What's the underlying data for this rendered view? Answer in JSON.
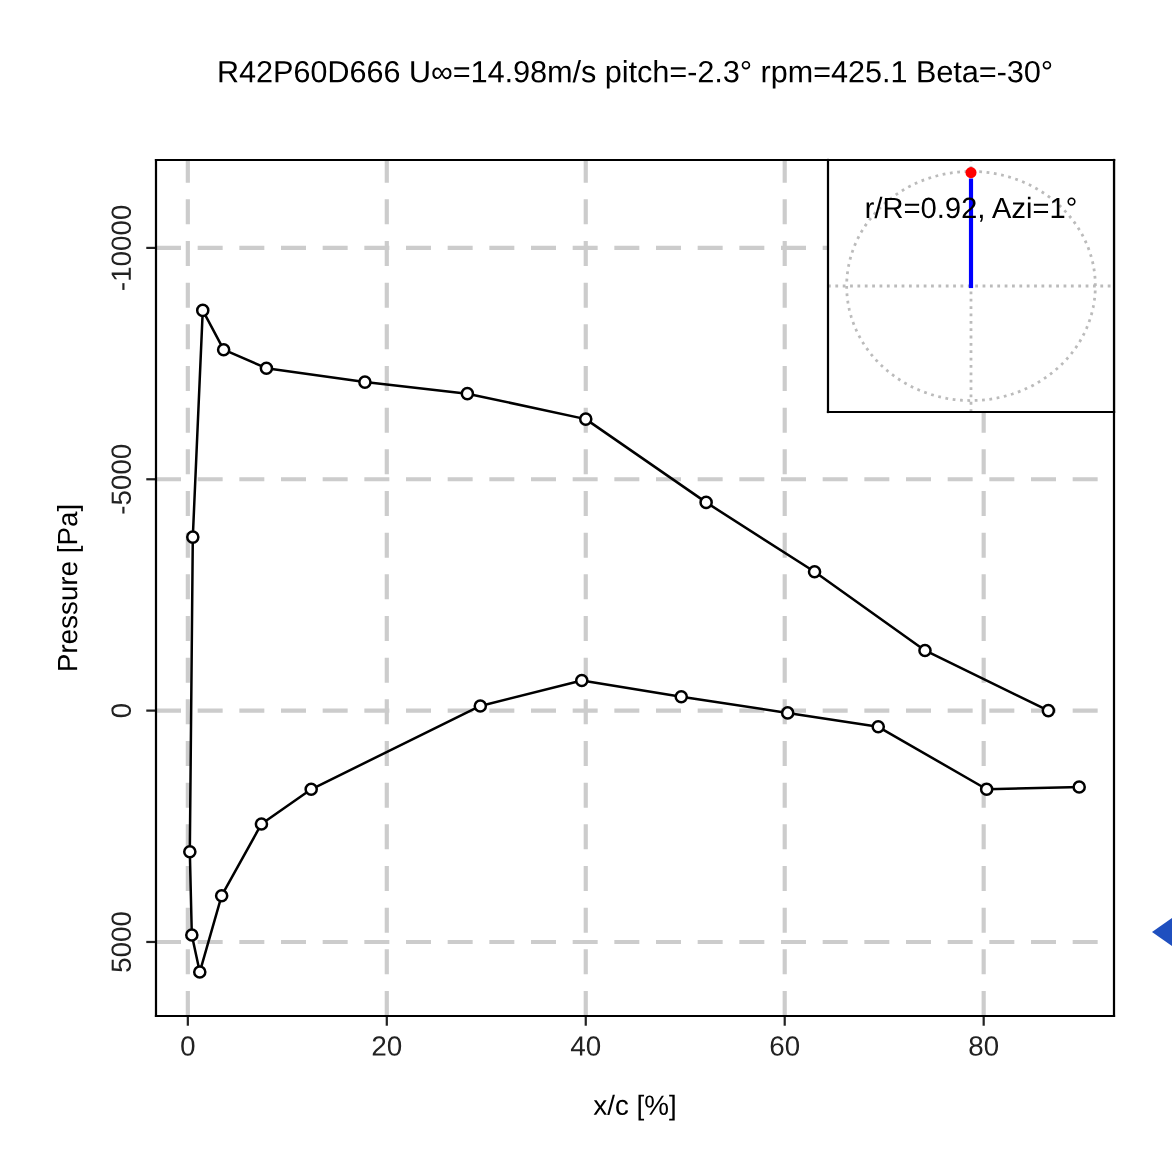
{
  "chart_data": {
    "type": "line",
    "title": "R42P60D666 U∞=14.98m/s pitch=-2.3° rpm=425.1 Beta=-30°",
    "xlabel": "x/c [%]",
    "ylabel": "Pressure [Pa]",
    "x": [
      86.5,
      74.1,
      63.0,
      52.1,
      40.0,
      28.1,
      17.8,
      7.9,
      3.6,
      1.5,
      0.5,
      0.2,
      0.4,
      1.2,
      3.4,
      7.4,
      12.4,
      29.4,
      39.6,
      49.6,
      60.3,
      69.4,
      80.3,
      89.6
    ],
    "series": [
      {
        "color": "#000000",
        "values": [
          0,
          -1300,
          -3000,
          -4500,
          -6300,
          -6850,
          -7100,
          -7400,
          -7800,
          -8650,
          -3750,
          3050,
          4850,
          5650,
          4000,
          2450,
          1700,
          -100,
          -650,
          -300,
          50,
          350,
          1700,
          1650
        ]
      }
    ],
    "xlim": [
      -3.2,
      93.1
    ],
    "ylim": [
      6600,
      -11900
    ],
    "xticks": [
      0,
      20,
      40,
      60,
      80
    ],
    "yticks": [
      -10000,
      -5000,
      0,
      5000
    ],
    "grid": true,
    "marker": "circle",
    "line_style": "solid",
    "annotations": [
      "r/R=0.92, Azi=1°"
    ]
  }
}
